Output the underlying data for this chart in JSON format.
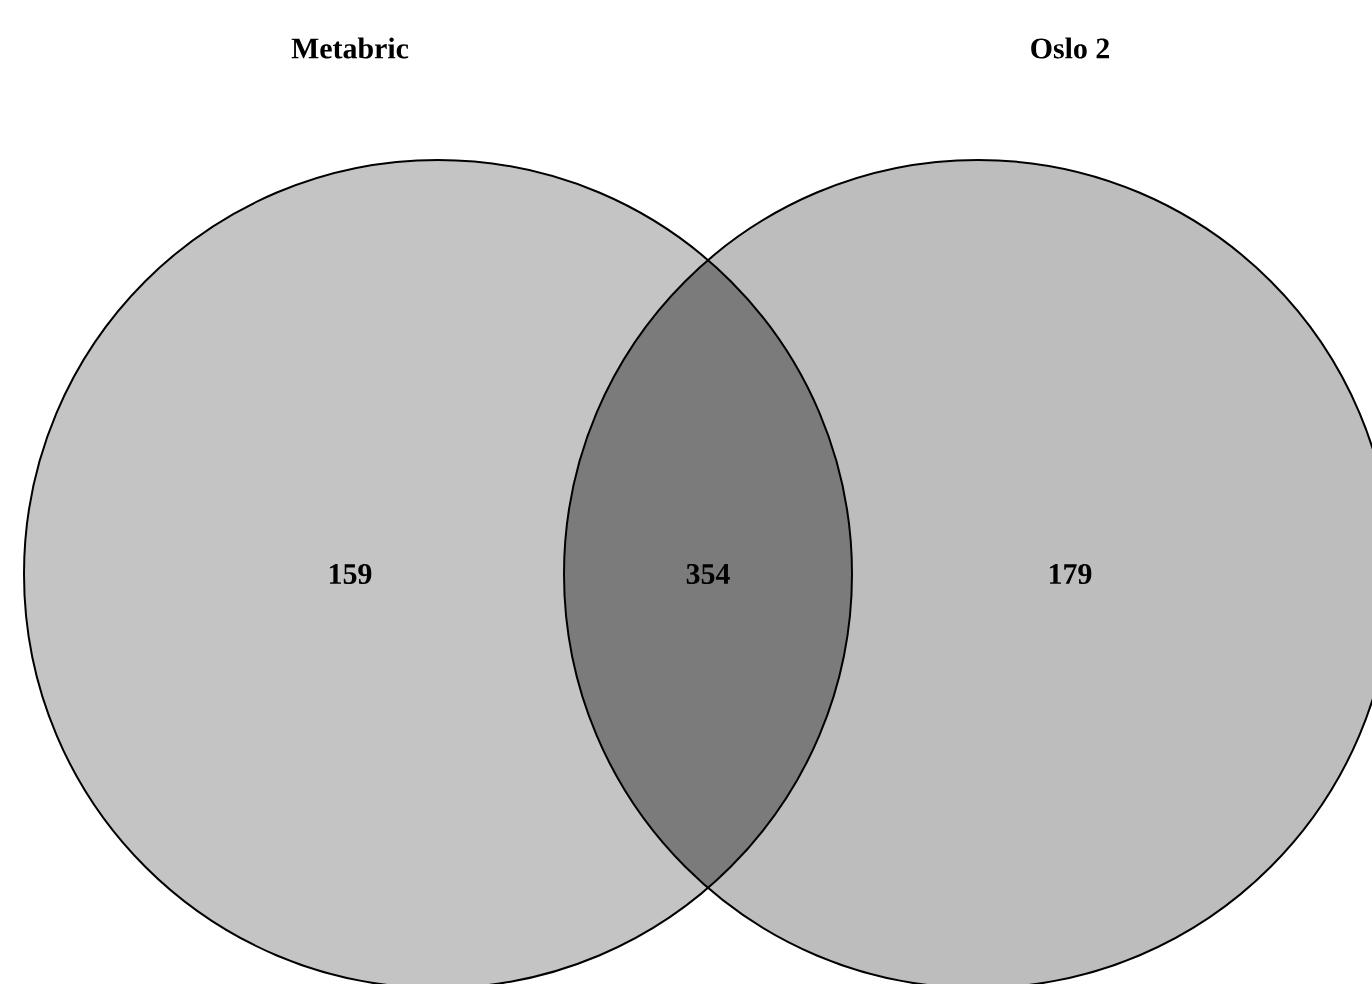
{
  "chart_data": {
    "type": "other",
    "categories": [
      null,
      null,
      null
    ],
    "values": [
      159,
      354,
      179
    ],
    "data_labels": true,
    "colors": [
      "#c4c4c4",
      "#7b7b7b",
      "#bdbdbd"
    ],
    "annotations": [
      "Metabric",
      "Oslo 2"
    ]
  }
}
